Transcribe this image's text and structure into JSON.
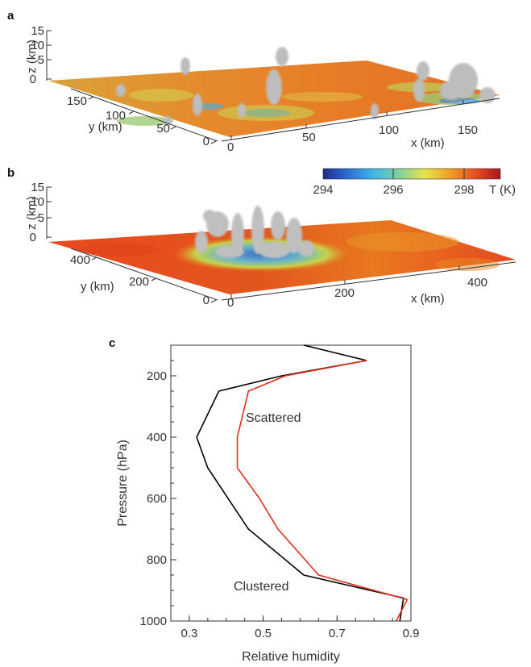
{
  "panels": {
    "a": {
      "letter": "a",
      "z_ticks": [
        "15",
        "10",
        "5",
        "0"
      ],
      "y_ticks": [
        "150",
        "100",
        "50",
        "0"
      ],
      "x_ticks": [
        "0",
        "50",
        "100",
        "150"
      ],
      "z_label": "z (km)",
      "y_label": "y (km)",
      "x_label": "x (km)"
    },
    "b": {
      "letter": "b",
      "z_ticks": [
        "15",
        "10",
        "5",
        "0"
      ],
      "y_ticks": [
        "400",
        "200",
        "0"
      ],
      "x_ticks": [
        "0",
        "200",
        "400"
      ],
      "z_label": "z (km)",
      "y_label": "y (km)",
      "x_label": "x (km)",
      "colorbar": {
        "ticks": [
          "294",
          "296",
          "298"
        ],
        "label": "T (K)",
        "range": [
          294,
          299
        ],
        "colors": [
          "#1f2a8c",
          "#2a6fd6",
          "#3fb7e8",
          "#7fd0a0",
          "#e9e34a",
          "#f0a028",
          "#e8501f",
          "#a8141c"
        ]
      }
    },
    "c": {
      "letter": "c"
    }
  },
  "chart_data": {
    "type": "line",
    "title": "",
    "xlabel": "Relative humidity",
    "ylabel": "Pressure (hPa)",
    "xlim": [
      0.25,
      0.9
    ],
    "ylim": [
      1000,
      100
    ],
    "y_inverted": true,
    "x_ticks": [
      0.3,
      0.5,
      0.7,
      0.9
    ],
    "y_ticks": [
      200,
      400,
      600,
      800,
      1000
    ],
    "series": [
      {
        "name": "Clustered",
        "color": "#000000",
        "points": [
          [
            0.61,
            100
          ],
          [
            0.78,
            150
          ],
          [
            0.55,
            200
          ],
          [
            0.38,
            250
          ],
          [
            0.32,
            400
          ],
          [
            0.35,
            500
          ],
          [
            0.46,
            700
          ],
          [
            0.61,
            850
          ],
          [
            0.88,
            925
          ],
          [
            0.87,
            1000
          ]
        ]
      },
      {
        "name": "Scattered",
        "color": "#e0301e",
        "points": [
          [
            0.78,
            150
          ],
          [
            0.56,
            200
          ],
          [
            0.46,
            250
          ],
          [
            0.43,
            400
          ],
          [
            0.43,
            500
          ],
          [
            0.49,
            600
          ],
          [
            0.54,
            700
          ],
          [
            0.65,
            850
          ],
          [
            0.89,
            930
          ],
          [
            0.86,
            1000
          ]
        ]
      }
    ],
    "annotations": [
      {
        "text": "Scattered",
        "color": "#e0301e"
      },
      {
        "text": "Clustered",
        "color": "#000000"
      }
    ]
  }
}
